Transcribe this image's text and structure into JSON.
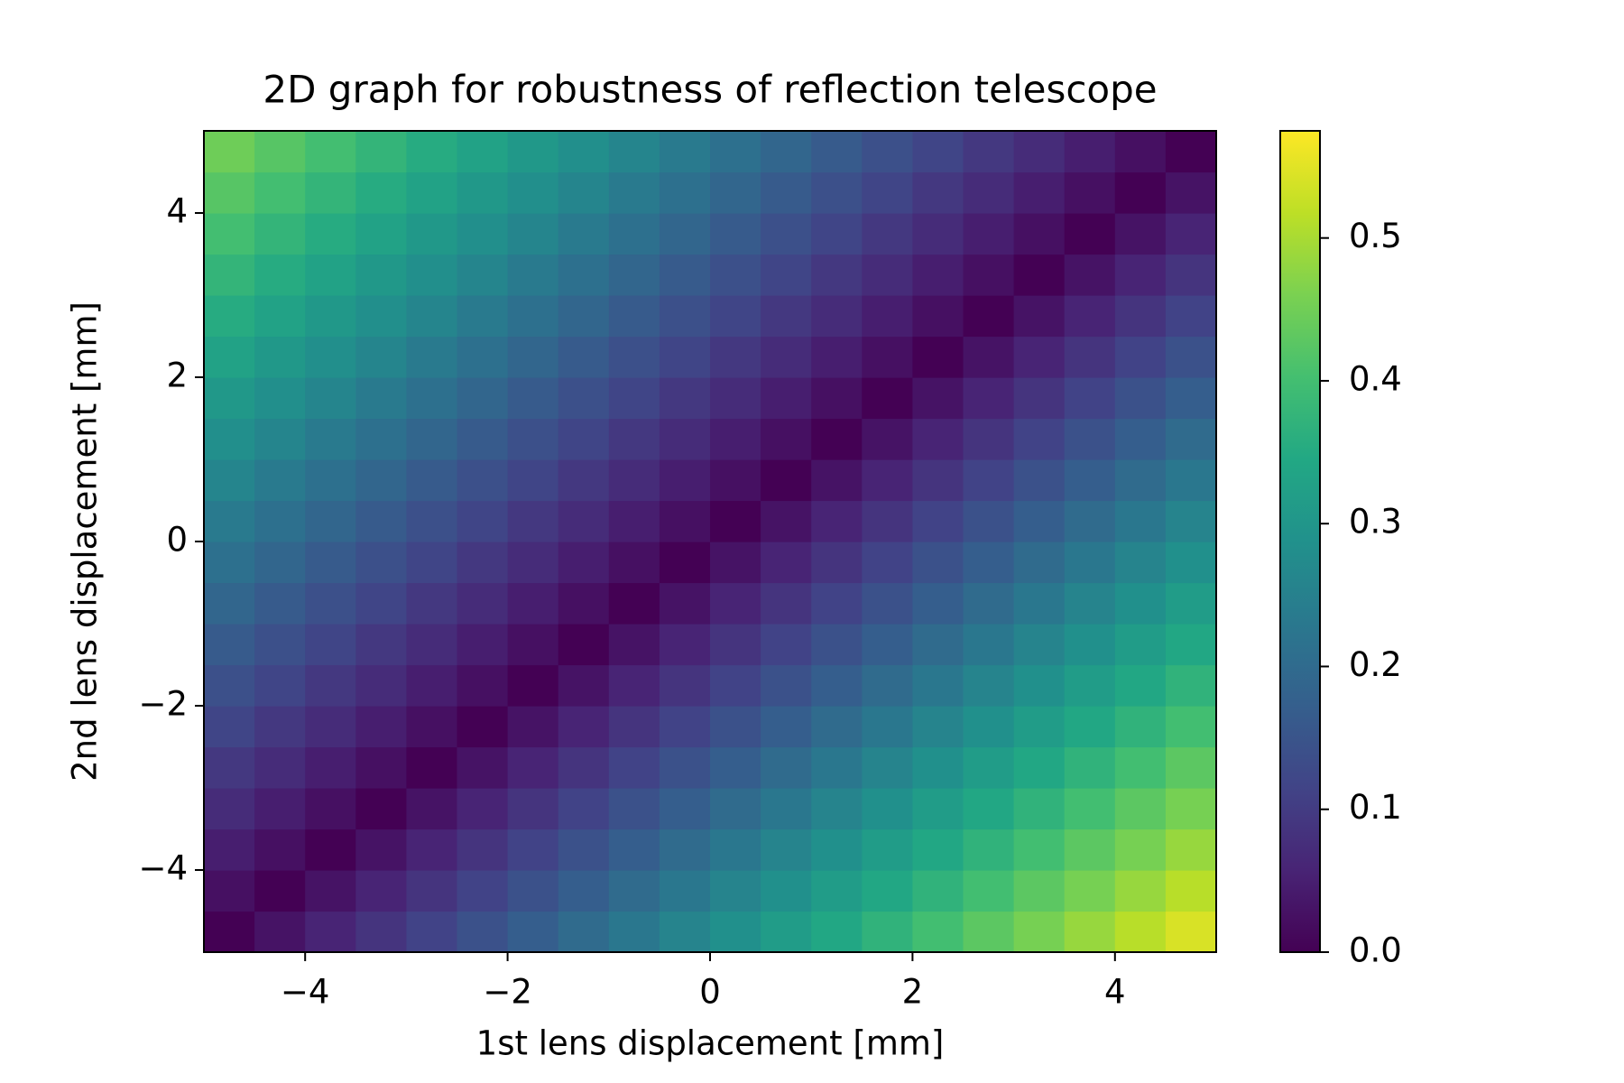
{
  "chart_data": {
    "type": "heatmap",
    "title": "2D graph for robustness of reflection telescope",
    "x_label": "1st lens displacement [mm]",
    "y_label": "2nd lens displacement [mm]",
    "colormap": "viridis",
    "xlim": [
      -5,
      5
    ],
    "ylim": [
      -5,
      5
    ],
    "clim": [
      0,
      0.575
    ],
    "xticks": [
      {
        "value": -4,
        "label": "−4"
      },
      {
        "value": -2,
        "label": "−2"
      },
      0,
      2,
      4
    ],
    "yticks": [
      {
        "value": -4,
        "label": "−4"
      },
      {
        "value": -2,
        "label": "−2"
      },
      0,
      2,
      4
    ],
    "cticks": [
      {
        "value": 0,
        "label": "0.0"
      },
      0.1,
      0.2,
      0.3,
      0.4,
      0.5
    ],
    "x": [
      -4.75,
      -4.25,
      -3.75,
      -3.25,
      -2.75,
      -2.25,
      -1.75,
      -1.25,
      -0.75,
      -0.25,
      0.25,
      0.75,
      1.25,
      1.75,
      2.25,
      2.75,
      3.25,
      3.75,
      4.25,
      4.75
    ],
    "y": [
      -4.75,
      -4.25,
      -3.75,
      -3.25,
      -2.75,
      -2.25,
      -1.75,
      -1.25,
      -0.75,
      -0.25,
      0.25,
      0.75,
      1.25,
      1.75,
      2.25,
      2.75,
      3.25,
      3.75,
      4.25,
      4.75
    ],
    "z": [
      [
        0,
        0.029,
        0.057,
        0.086,
        0.114,
        0.143,
        0.171,
        0.2,
        0.228,
        0.257,
        0.285,
        0.314,
        0.342,
        0.371,
        0.399,
        0.428,
        0.456,
        0.485,
        0.513,
        0.542
      ],
      [
        0.024,
        0,
        0.029,
        0.057,
        0.086,
        0.114,
        0.143,
        0.171,
        0.2,
        0.228,
        0.257,
        0.285,
        0.314,
        0.342,
        0.371,
        0.399,
        0.428,
        0.456,
        0.485,
        0.513
      ],
      [
        0.047,
        0.024,
        0,
        0.029,
        0.057,
        0.086,
        0.114,
        0.143,
        0.171,
        0.2,
        0.228,
        0.257,
        0.285,
        0.314,
        0.342,
        0.371,
        0.399,
        0.428,
        0.456,
        0.485
      ],
      [
        0.071,
        0.047,
        0.024,
        0,
        0.029,
        0.057,
        0.086,
        0.114,
        0.143,
        0.171,
        0.2,
        0.228,
        0.257,
        0.285,
        0.314,
        0.342,
        0.371,
        0.399,
        0.428,
        0.456
      ],
      [
        0.094,
        0.071,
        0.047,
        0.024,
        0,
        0.029,
        0.057,
        0.086,
        0.114,
        0.143,
        0.171,
        0.2,
        0.228,
        0.257,
        0.285,
        0.314,
        0.342,
        0.371,
        0.399,
        0.428
      ],
      [
        0.118,
        0.094,
        0.071,
        0.047,
        0.024,
        0,
        0.029,
        0.057,
        0.086,
        0.114,
        0.143,
        0.171,
        0.2,
        0.228,
        0.257,
        0.285,
        0.314,
        0.342,
        0.371,
        0.399
      ],
      [
        0.141,
        0.118,
        0.094,
        0.071,
        0.047,
        0.024,
        0,
        0.029,
        0.057,
        0.086,
        0.114,
        0.143,
        0.171,
        0.2,
        0.228,
        0.257,
        0.285,
        0.314,
        0.342,
        0.371
      ],
      [
        0.165,
        0.141,
        0.118,
        0.094,
        0.071,
        0.047,
        0.024,
        0,
        0.029,
        0.057,
        0.086,
        0.114,
        0.143,
        0.171,
        0.2,
        0.228,
        0.257,
        0.285,
        0.314,
        0.342
      ],
      [
        0.188,
        0.165,
        0.141,
        0.118,
        0.094,
        0.071,
        0.047,
        0.024,
        0,
        0.029,
        0.057,
        0.086,
        0.114,
        0.143,
        0.171,
        0.2,
        0.228,
        0.257,
        0.285,
        0.314
      ],
      [
        0.212,
        0.188,
        0.165,
        0.141,
        0.118,
        0.094,
        0.071,
        0.047,
        0.024,
        0,
        0.029,
        0.057,
        0.086,
        0.114,
        0.143,
        0.171,
        0.2,
        0.228,
        0.257,
        0.285
      ],
      [
        0.235,
        0.212,
        0.188,
        0.165,
        0.141,
        0.118,
        0.094,
        0.071,
        0.047,
        0.024,
        0,
        0.029,
        0.057,
        0.086,
        0.114,
        0.143,
        0.171,
        0.2,
        0.228,
        0.257
      ],
      [
        0.259,
        0.235,
        0.212,
        0.188,
        0.165,
        0.141,
        0.118,
        0.094,
        0.071,
        0.047,
        0.024,
        0,
        0.029,
        0.057,
        0.086,
        0.114,
        0.143,
        0.171,
        0.2,
        0.228
      ],
      [
        0.282,
        0.259,
        0.235,
        0.212,
        0.188,
        0.165,
        0.141,
        0.118,
        0.094,
        0.071,
        0.047,
        0.024,
        0,
        0.029,
        0.057,
        0.086,
        0.114,
        0.143,
        0.171,
        0.2
      ],
      [
        0.306,
        0.282,
        0.259,
        0.235,
        0.212,
        0.188,
        0.165,
        0.141,
        0.118,
        0.094,
        0.071,
        0.047,
        0.024,
        0,
        0.029,
        0.057,
        0.086,
        0.114,
        0.143,
        0.171
      ],
      [
        0.329,
        0.306,
        0.282,
        0.259,
        0.235,
        0.212,
        0.188,
        0.165,
        0.141,
        0.118,
        0.094,
        0.071,
        0.047,
        0.024,
        0,
        0.029,
        0.057,
        0.086,
        0.114,
        0.143
      ],
      [
        0.353,
        0.329,
        0.306,
        0.282,
        0.259,
        0.235,
        0.212,
        0.188,
        0.165,
        0.141,
        0.118,
        0.094,
        0.071,
        0.047,
        0.024,
        0,
        0.029,
        0.057,
        0.086,
        0.114
      ],
      [
        0.376,
        0.353,
        0.329,
        0.306,
        0.282,
        0.259,
        0.235,
        0.212,
        0.188,
        0.165,
        0.141,
        0.118,
        0.094,
        0.071,
        0.047,
        0.024,
        0,
        0.029,
        0.057,
        0.086
      ],
      [
        0.4,
        0.376,
        0.353,
        0.329,
        0.306,
        0.282,
        0.259,
        0.235,
        0.212,
        0.188,
        0.165,
        0.141,
        0.118,
        0.094,
        0.071,
        0.047,
        0.024,
        0,
        0.029,
        0.057
      ],
      [
        0.423,
        0.4,
        0.376,
        0.353,
        0.329,
        0.306,
        0.282,
        0.259,
        0.235,
        0.212,
        0.188,
        0.165,
        0.141,
        0.118,
        0.094,
        0.071,
        0.047,
        0.024,
        0,
        0.029
      ],
      [
        0.447,
        0.423,
        0.4,
        0.376,
        0.353,
        0.329,
        0.306,
        0.282,
        0.259,
        0.235,
        0.212,
        0.188,
        0.165,
        0.141,
        0.118,
        0.094,
        0.071,
        0.047,
        0.024,
        0
      ]
    ]
  }
}
